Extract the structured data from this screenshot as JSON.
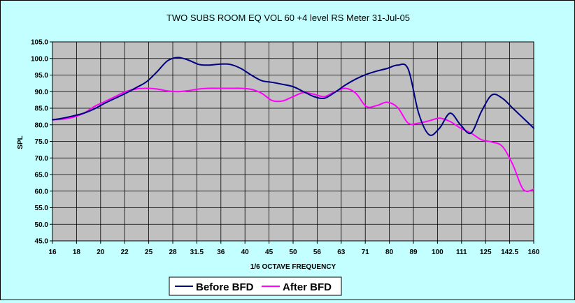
{
  "chart_data": {
    "type": "line",
    "title": "TWO SUBS  ROOM EQ VOL 60 +4 level RS Meter 31-Jul-05",
    "xlabel": "1/6 OCTAVE FREQUENCY",
    "ylabel": "SPL",
    "ylim": [
      45.0,
      105.0
    ],
    "y_ticks": [
      "45.0",
      "50.0",
      "55.0",
      "60.0",
      "65.0",
      "70.0",
      "75.0",
      "80.0",
      "85.0",
      "90.0",
      "95.0",
      "100.0",
      "105.0"
    ],
    "categories": [
      "16",
      "18",
      "20",
      "22",
      "25",
      "28",
      "31.5",
      "36",
      "40",
      "45",
      "50",
      "56",
      "63",
      "71",
      "80",
      "89",
      "100",
      "111",
      "125",
      "142.5",
      "160"
    ],
    "grid": true,
    "legend_position": "bottom",
    "plot_background": "#c0c0c0",
    "series": [
      {
        "name": "Before BFD",
        "color": "#000080",
        "x": [
          16,
          17,
          18,
          19,
          20,
          21,
          22,
          23,
          24,
          25,
          26,
          27,
          28,
          29,
          30,
          31,
          32,
          33,
          34,
          35,
          36,
          37,
          38,
          39,
          40,
          41,
          42,
          43,
          44,
          45,
          46,
          47,
          48,
          49,
          50,
          51,
          52,
          53,
          54,
          55,
          56,
          57,
          58,
          59,
          60,
          61,
          62
        ],
        "values": [
          81.5,
          82.0,
          82.7,
          83.5,
          84.8,
          86.5,
          88.0,
          89.5,
          91.2,
          93.0,
          96.0,
          99.3,
          100.3,
          99.5,
          98.2,
          98.0,
          98.3,
          98.2,
          97.0,
          95.0,
          93.3,
          92.8,
          92.2,
          91.5,
          90.0,
          88.5,
          88.0,
          89.8,
          92.0,
          93.8,
          95.2,
          96.2,
          97.0,
          98.0,
          96.8,
          83.5,
          77.0,
          79.0,
          83.5,
          80.0,
          77.5,
          84.0,
          89.0,
          88.0,
          85.0,
          82.0,
          79.0
        ]
      },
      {
        "name": "After BFD",
        "color": "#ff00ff",
        "x": [
          16,
          17,
          18,
          19,
          20,
          21,
          22,
          23,
          24,
          25,
          26,
          27,
          28,
          29,
          30,
          31,
          32,
          33,
          34,
          35,
          36,
          37,
          38,
          39,
          40,
          41,
          42,
          43,
          44,
          45,
          46,
          47,
          48,
          49,
          50,
          51,
          52,
          53,
          54,
          55,
          56,
          57,
          58,
          59,
          60,
          61,
          62
        ],
        "values": [
          81.5,
          81.7,
          82.3,
          83.5,
          85.5,
          87.0,
          88.5,
          90.0,
          90.8,
          91.0,
          90.8,
          90.2,
          90.0,
          90.3,
          90.8,
          91.0,
          91.0,
          91.0,
          91.0,
          90.7,
          89.5,
          87.3,
          87.2,
          88.5,
          89.7,
          89.2,
          88.5,
          90.0,
          91.0,
          89.5,
          85.5,
          85.8,
          86.8,
          85.2,
          80.5,
          80.5,
          81.2,
          82.0,
          81.0,
          79.0,
          77.5,
          75.5,
          74.8,
          73.5,
          68.0,
          60.5,
          60.5
        ]
      }
    ]
  }
}
